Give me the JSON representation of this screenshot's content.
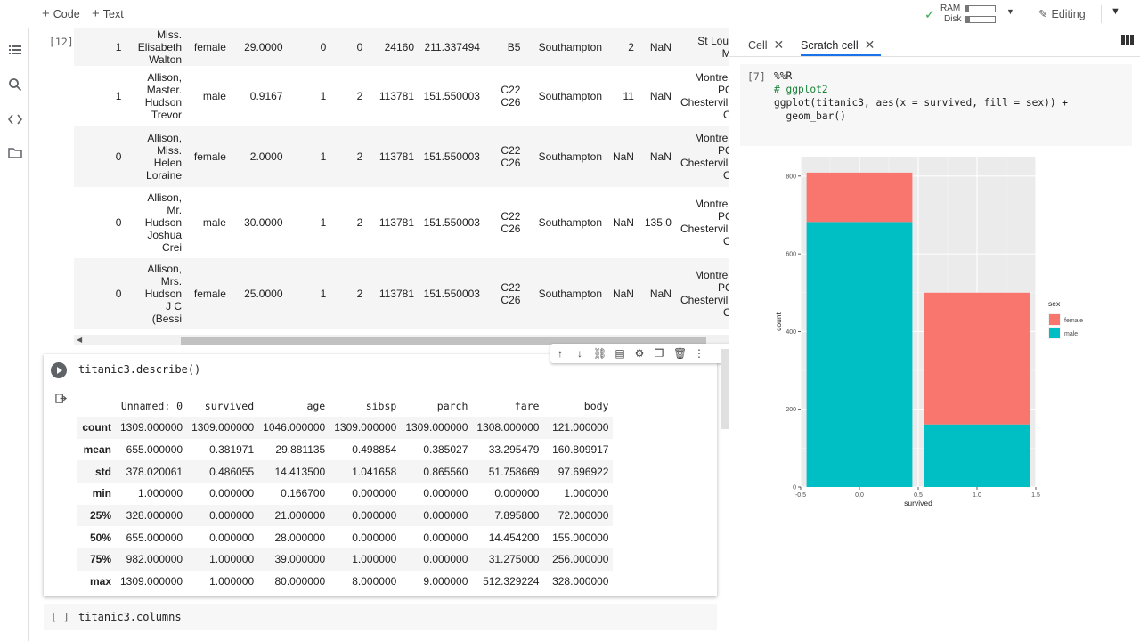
{
  "toolbar": {
    "code_label": "Code",
    "text_label": "Text",
    "ram_label": "RAM",
    "disk_label": "Disk",
    "editing_label": "Editing",
    "ram_fill": 0.08,
    "disk_fill": 0.12
  },
  "upper_cell": {
    "exec_count": "[12]",
    "rows": [
      {
        "survived": "1",
        "name": [
          "Miss.",
          "Elisabeth",
          "Walton"
        ],
        "sex": "female",
        "age": "29.0000",
        "sibsp": "0",
        "parch": "0",
        "ticket": "24160",
        "fare": "211.337494",
        "cabin": [
          "B5"
        ],
        "embarked": "Southampton",
        "boat": "2",
        "body": "NaN",
        "home": [
          "St Louis,",
          "MO"
        ]
      },
      {
        "survived": "1",
        "name": [
          "Allison,",
          "Master.",
          "Hudson",
          "Trevor"
        ],
        "sex": "male",
        "age": "0.9167",
        "sibsp": "1",
        "parch": "2",
        "ticket": "113781",
        "fare": "151.550003",
        "cabin": [
          "C22",
          "C26"
        ],
        "embarked": "Southampton",
        "boat": "11",
        "body": "NaN",
        "home": [
          "Montreal,",
          "PQ /",
          "Chesterville,",
          "ON"
        ]
      },
      {
        "survived": "0",
        "name": [
          "Allison,",
          "Miss.",
          "Helen",
          "Loraine"
        ],
        "sex": "female",
        "age": "2.0000",
        "sibsp": "1",
        "parch": "2",
        "ticket": "113781",
        "fare": "151.550003",
        "cabin": [
          "C22",
          "C26"
        ],
        "embarked": "Southampton",
        "boat": "NaN",
        "body": "NaN",
        "home": [
          "Montreal,",
          "PQ /",
          "Chesterville,",
          "ON"
        ]
      },
      {
        "survived": "0",
        "name": [
          "Allison,",
          "Mr.",
          "Hudson",
          "Joshua",
          "Crei"
        ],
        "sex": "male",
        "age": "30.0000",
        "sibsp": "1",
        "parch": "2",
        "ticket": "113781",
        "fare": "151.550003",
        "cabin": [
          "C22",
          "C26"
        ],
        "embarked": "Southampton",
        "boat": "NaN",
        "body": "135.0",
        "home": [
          "Montreal,",
          "PQ /",
          "Chesterville,",
          "ON"
        ]
      },
      {
        "survived": "0",
        "name": [
          "Allison,",
          "Mrs.",
          "Hudson",
          "J C",
          "(Bessi"
        ],
        "sex": "female",
        "age": "25.0000",
        "sibsp": "1",
        "parch": "2",
        "ticket": "113781",
        "fare": "151.550003",
        "cabin": [
          "C22",
          "C26"
        ],
        "embarked": "Southampton",
        "boat": "NaN",
        "body": "NaN",
        "home": [
          "Montreal,",
          "PQ /",
          "Chesterville,",
          "ON"
        ]
      }
    ]
  },
  "describe_cell": {
    "code": "titanic3.describe()",
    "columns": [
      "Unnamed: 0",
      "survived",
      "age",
      "sibsp",
      "parch",
      "fare",
      "body"
    ],
    "rows": [
      {
        "label": "count",
        "values": [
          "1309.000000",
          "1309.000000",
          "1046.000000",
          "1309.000000",
          "1309.000000",
          "1308.000000",
          "121.000000"
        ]
      },
      {
        "label": "mean",
        "values": [
          "655.000000",
          "0.381971",
          "29.881135",
          "0.498854",
          "0.385027",
          "33.295479",
          "160.809917"
        ]
      },
      {
        "label": "std",
        "values": [
          "378.020061",
          "0.486055",
          "14.413500",
          "1.041658",
          "0.865560",
          "51.758669",
          "97.696922"
        ]
      },
      {
        "label": "min",
        "values": [
          "1.000000",
          "0.000000",
          "0.166700",
          "0.000000",
          "0.000000",
          "0.000000",
          "1.000000"
        ]
      },
      {
        "label": "25%",
        "values": [
          "328.000000",
          "0.000000",
          "21.000000",
          "0.000000",
          "0.000000",
          "7.895800",
          "72.000000"
        ]
      },
      {
        "label": "50%",
        "values": [
          "655.000000",
          "0.000000",
          "28.000000",
          "0.000000",
          "0.000000",
          "14.454200",
          "155.000000"
        ]
      },
      {
        "label": "75%",
        "values": [
          "982.000000",
          "1.000000",
          "39.000000",
          "1.000000",
          "0.000000",
          "31.275000",
          "256.000000"
        ]
      },
      {
        "label": "max",
        "values": [
          "1309.000000",
          "1.000000",
          "80.000000",
          "8.000000",
          "9.000000",
          "512.329224",
          "328.000000"
        ]
      }
    ]
  },
  "columns_cell": {
    "exec_count": "[ ]",
    "code": "titanic3.columns"
  },
  "right_pane": {
    "tab_cell": "Cell",
    "tab_scratch": "Scratch cell",
    "exec_count": "[7]",
    "code_lines": [
      "%%R",
      "# ggplot2",
      "ggplot(titanic3, aes(x = survived, fill = sex)) +",
      "  geom_bar()"
    ]
  },
  "chart_data": {
    "type": "bar",
    "stacked": true,
    "categories": [
      "0",
      "1"
    ],
    "x_positions": [
      0,
      1
    ],
    "series": [
      {
        "name": "female",
        "color": "#F8766D",
        "values": [
          127,
          339
        ]
      },
      {
        "name": "male",
        "color": "#00BFC4",
        "values": [
          682,
          161
        ]
      }
    ],
    "xlabel": "survived",
    "ylabel": "count",
    "xticks": [
      "-0.5",
      "0.0",
      "0.5",
      "1.0",
      "1.5"
    ],
    "xtick_values": [
      -0.5,
      0,
      0.5,
      1,
      1.5
    ],
    "yticks": [
      "0",
      "200",
      "400",
      "600",
      "800"
    ],
    "ytick_values": [
      0,
      200,
      400,
      600,
      800
    ],
    "xlim": [
      -0.5,
      1.5
    ],
    "ylim": [
      0,
      850
    ],
    "legend_title": "sex",
    "legend_position": "right",
    "grid": true,
    "panel_color": "#EBEBEB"
  }
}
